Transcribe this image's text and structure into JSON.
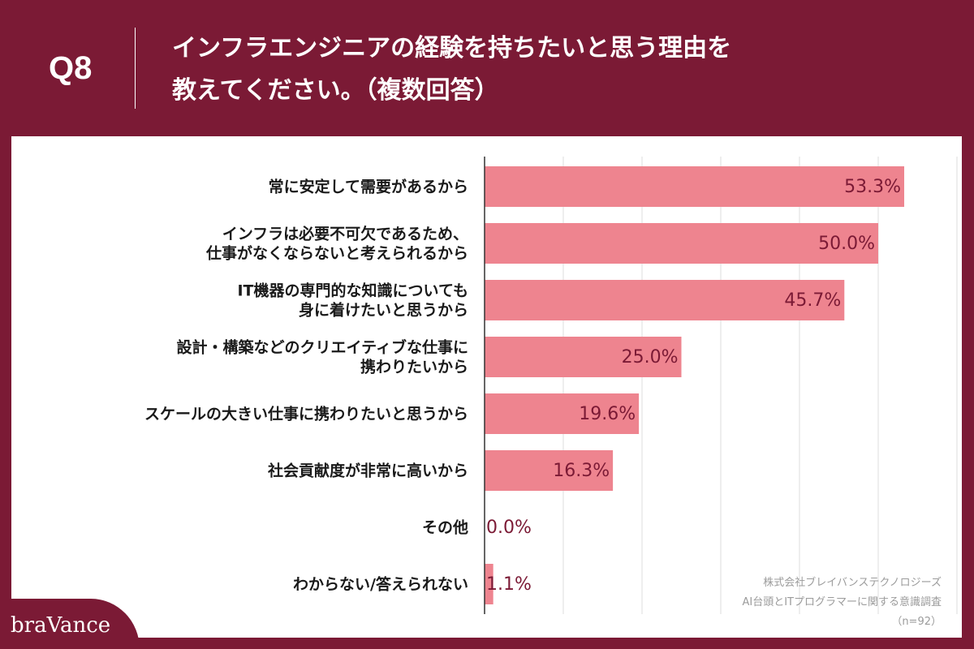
{
  "header": {
    "question_number": "Q8",
    "title_line1": "インフラエンジニアの経験を持ちたいと思う理由を",
    "title_line2": "教えてください。（複数回答）"
  },
  "chart_data": {
    "type": "bar",
    "orientation": "horizontal",
    "categories": [
      [
        "常に安定して需要があるから"
      ],
      [
        "インフラは必要不可欠であるため、",
        "仕事がなくならないと考えられるから"
      ],
      [
        "IT機器の専門的な知識についても",
        "身に着けたいと思うから"
      ],
      [
        "設計・構築などのクリエイティブな仕事に",
        "携わりたいから"
      ],
      [
        "スケールの大きい仕事に携わりたいと思うから"
      ],
      [
        "社会貢献度が非常に高いから"
      ],
      [
        "その他"
      ],
      [
        "わからない/答えられない"
      ]
    ],
    "values": [
      53.3,
      50.0,
      45.7,
      25.0,
      19.6,
      16.3,
      0.0,
      1.1
    ],
    "value_labels": [
      "53.3%",
      "50.0%",
      "45.7%",
      "25.0%",
      "19.6%",
      "16.3%",
      "0.0%",
      "1.1%"
    ],
    "xlim": [
      0,
      60
    ],
    "grid": true,
    "bar_color": "#ee848f",
    "label_color": "#7b1a35"
  },
  "source": {
    "line1": "株式会社ブレイバンステクノロジーズ",
    "line2": "AI台頭とITプログラマーに関する意識調査",
    "line3": "（n=92）"
  },
  "brand": {
    "logo_text": "braVance",
    "primary_color": "#7b1a35"
  }
}
